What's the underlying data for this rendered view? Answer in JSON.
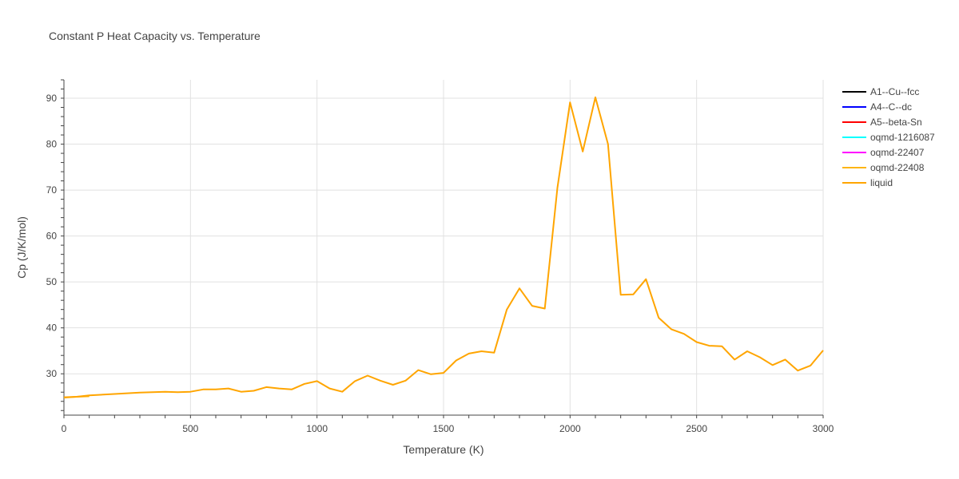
{
  "chart_data": {
    "type": "line",
    "title": "Constant P Heat Capacity vs. Temperature",
    "xlabel": "Temperature (K)",
    "ylabel": "Cp (J/K/mol)",
    "xlim": [
      0,
      3000
    ],
    "ylim": [
      21,
      94
    ],
    "xticks": [
      0,
      500,
      1000,
      1500,
      2000,
      2500,
      3000
    ],
    "yticks": [
      30,
      40,
      50,
      60,
      70,
      80,
      90
    ],
    "grid": true,
    "legend_position": "right",
    "series": [
      {
        "name": "A1--Cu--fcc",
        "color": "#000000",
        "x": [],
        "y": []
      },
      {
        "name": "A4--C--dc",
        "color": "#0000ff",
        "x": [],
        "y": []
      },
      {
        "name": "A5--beta-Sn",
        "color": "#ff0000",
        "x": [],
        "y": []
      },
      {
        "name": "oqmd-1216087",
        "color": "#00ffff",
        "x": [],
        "y": []
      },
      {
        "name": "oqmd-22407",
        "color": "#ff00ff",
        "x": [],
        "y": []
      },
      {
        "name": "oqmd-22408",
        "color": "#fdb515",
        "x": [
          0,
          50,
          100
        ],
        "y": [
          24.8,
          25.0,
          25.1
        ]
      },
      {
        "name": "liquid",
        "color": "#ffa500",
        "x": [
          0,
          50,
          100,
          200,
          300,
          400,
          450,
          500,
          550,
          600,
          650,
          700,
          750,
          800,
          850,
          900,
          950,
          1000,
          1050,
          1100,
          1150,
          1200,
          1250,
          1300,
          1350,
          1400,
          1450,
          1500,
          1550,
          1600,
          1650,
          1700,
          1750,
          1800,
          1850,
          1900,
          1950,
          2000,
          2050,
          2100,
          2150,
          2200,
          2250,
          2300,
          2350,
          2400,
          2450,
          2500,
          2550,
          2600,
          2650,
          2700,
          2750,
          2800,
          2850,
          2900,
          2950,
          3000
        ],
        "y": [
          24.9,
          25.0,
          25.3,
          25.6,
          25.9,
          26.1,
          26.0,
          26.1,
          26.6,
          26.6,
          26.8,
          26.1,
          26.3,
          27.1,
          26.8,
          26.6,
          27.8,
          28.4,
          26.8,
          26.1,
          28.4,
          29.6,
          28.5,
          27.6,
          28.5,
          30.8,
          29.9,
          30.2,
          32.9,
          34.4,
          34.9,
          34.6,
          44.0,
          48.6,
          44.8,
          44.2,
          70.5,
          89.1,
          78.4,
          90.2,
          80.0,
          47.2,
          47.3,
          50.6,
          42.2,
          39.7,
          38.7,
          36.9,
          36.1,
          36.0,
          33.1,
          34.9,
          33.6,
          31.9,
          33.1,
          30.7,
          31.8,
          35.1
        ]
      }
    ]
  }
}
